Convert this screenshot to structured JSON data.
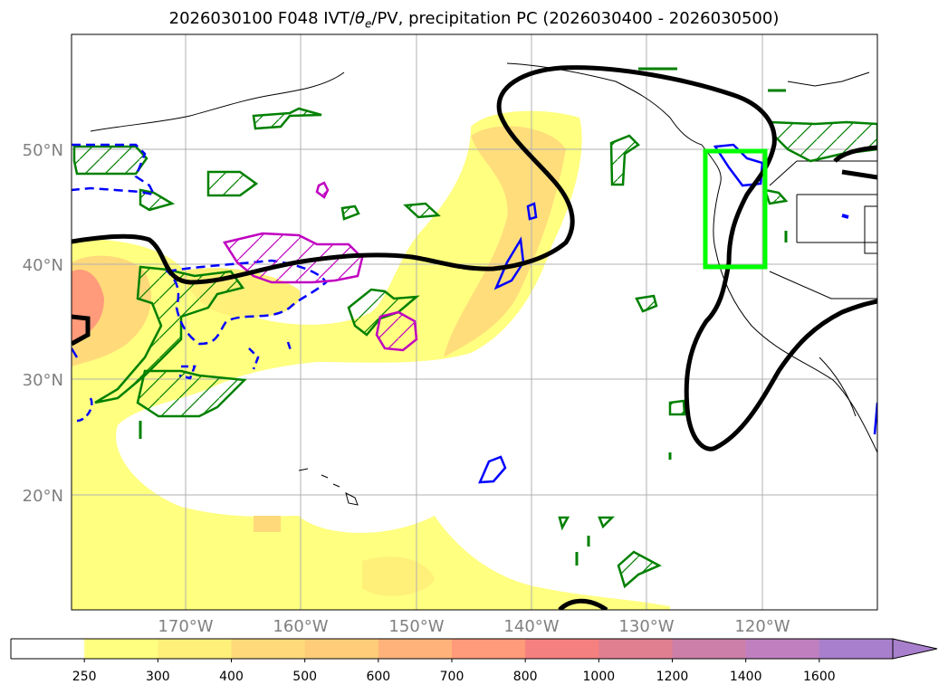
{
  "title": {
    "prefix": "2026030100 F048 IVT/",
    "theta": "θ",
    "theta_sub": "e",
    "suffix": "/PV, precipitation PC (2026030400 - 2026030500)"
  },
  "map": {
    "lat_labels": [
      "50°N",
      "40°N",
      "30°N",
      "20°N"
    ],
    "lon_labels": [
      "170°W",
      "160°W",
      "150°W",
      "140°W",
      "130°W",
      "120°W"
    ]
  },
  "colorbar": {
    "ticks": [
      "250",
      "300",
      "400",
      "500",
      "600",
      "700",
      "800",
      "1000",
      "1200",
      "1400",
      "1600"
    ],
    "colors": [
      "#ffffff",
      "#ffff80",
      "#fff07a",
      "#ffd97a",
      "#ffcc7a",
      "#ffb37a",
      "#ff9a7a",
      "#f58080",
      "#e07f90",
      "#cc7fa8",
      "#c080c0",
      "#a87fcc"
    ],
    "extend": "max"
  },
  "legend_colors": {
    "ivt_high": "#ff9999",
    "pv_contour": "#000000",
    "precip_green": "#008000",
    "blue_contour": "#0000ff",
    "magenta_contour": "#c000c0",
    "target_box": "#00ff00"
  }
}
